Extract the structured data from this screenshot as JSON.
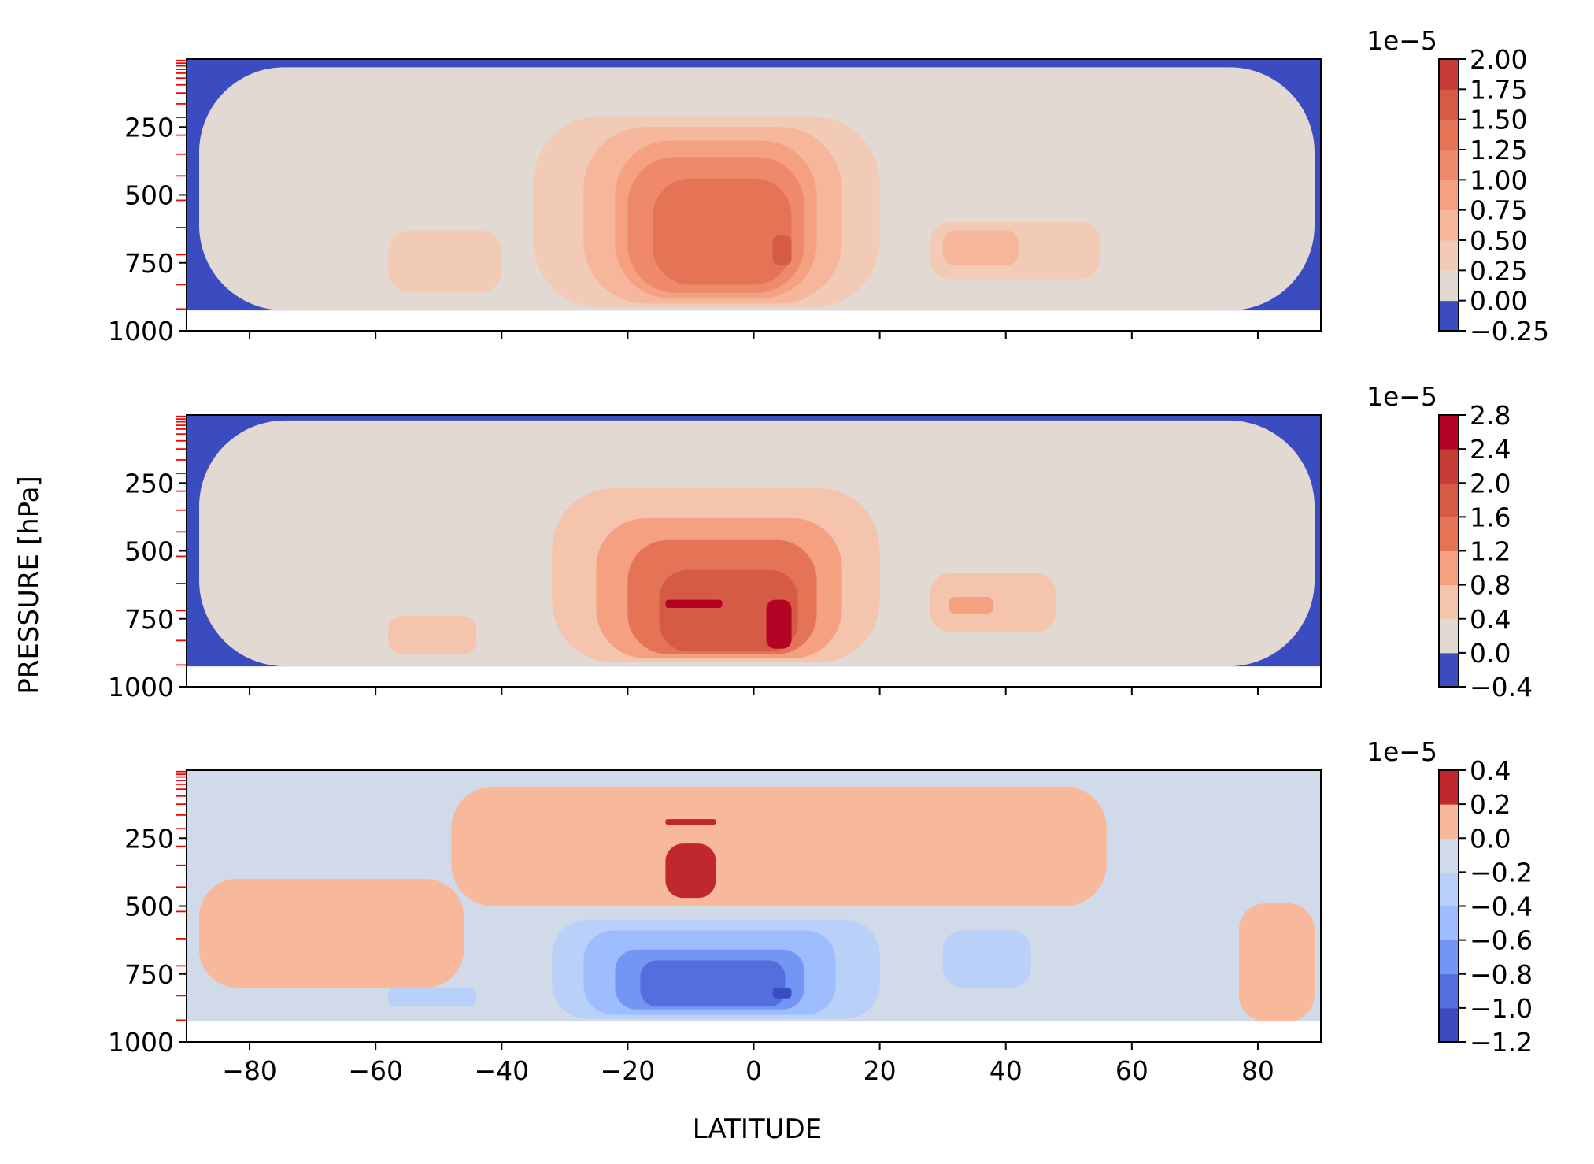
{
  "figure": {
    "ylabel": "PRESSURE [hPa]",
    "xlabel": "LATITUDE",
    "colorbar_exponent": "1e−5"
  },
  "chart_data": [
    {
      "type": "heatmap",
      "subtype": "filled-contour",
      "xlim": [
        -90,
        90
      ],
      "ylim": [
        1000,
        0
      ],
      "xticks": [
        -80,
        -60,
        -40,
        -20,
        0,
        20,
        40,
        60,
        80
      ],
      "xtick_labels": [
        "",
        "",
        "",
        "",
        "",
        "",
        "",
        "",
        ""
      ],
      "yticks": [
        250,
        500,
        750,
        1000
      ],
      "ytick_labels": [
        "250",
        "500",
        "750",
        "1000"
      ],
      "colorbar": {
        "scale": "1e−5",
        "levels": [
          -0.25,
          0.0,
          0.25,
          0.5,
          0.75,
          1.0,
          1.25,
          1.5,
          1.75,
          2.0
        ],
        "tick_labels": [
          "−0.25",
          "0.00",
          "0.25",
          "0.50",
          "0.75",
          "1.00",
          "1.25",
          "1.50",
          "1.75",
          "2.00"
        ],
        "colors": [
          "#3b4cc0",
          "#e3d9d3",
          "#f2cbb7",
          "#f6b69b",
          "#f4a081",
          "#ee8a6a",
          "#e57356",
          "#d65b44",
          "#c43c35"
        ]
      },
      "regions": [
        {
          "level": 1,
          "lon": [
            -88,
            89
          ],
          "p": [
            30,
            925
          ]
        },
        {
          "level": 2,
          "lon": [
            -35,
            20
          ],
          "p": [
            210,
            915
          ]
        },
        {
          "level": 2,
          "lon": [
            -58,
            -40
          ],
          "p": [
            630,
            860
          ]
        },
        {
          "level": 2,
          "lon": [
            28,
            55
          ],
          "p": [
            600,
            810
          ]
        },
        {
          "level": 3,
          "lon": [
            -27,
            14
          ],
          "p": [
            250,
            900
          ]
        },
        {
          "level": 3,
          "lon": [
            30,
            42
          ],
          "p": [
            630,
            760
          ]
        },
        {
          "level": 4,
          "lon": [
            -22,
            10
          ],
          "p": [
            300,
            880
          ]
        },
        {
          "level": 5,
          "lon": [
            -20,
            8
          ],
          "p": [
            360,
            860
          ]
        },
        {
          "level": 6,
          "lon": [
            -16,
            6
          ],
          "p": [
            440,
            830
          ]
        },
        {
          "level": 7,
          "lon": [
            3,
            6
          ],
          "p": [
            650,
            760
          ]
        }
      ]
    },
    {
      "type": "heatmap",
      "subtype": "filled-contour",
      "xlim": [
        -90,
        90
      ],
      "ylim": [
        1000,
        0
      ],
      "xticks": [
        -80,
        -60,
        -40,
        -20,
        0,
        20,
        40,
        60,
        80
      ],
      "xtick_labels": [
        "",
        "",
        "",
        "",
        "",
        "",
        "",
        "",
        ""
      ],
      "yticks": [
        250,
        500,
        750,
        1000
      ],
      "ytick_labels": [
        "250",
        "500",
        "750",
        "1000"
      ],
      "colorbar": {
        "scale": "1e−5",
        "levels": [
          -0.4,
          0.0,
          0.4,
          0.8,
          1.2,
          1.6,
          2.0,
          2.4,
          2.8
        ],
        "tick_labels": [
          "−0.4",
          "0.0",
          "0.4",
          "0.8",
          "1.2",
          "1.6",
          "2.0",
          "2.4",
          "2.8"
        ],
        "colors": [
          "#3b4cc0",
          "#e3d9d3",
          "#f5c4ac",
          "#f4a081",
          "#e57356",
          "#d65b44",
          "#c43c35",
          "#b40426"
        ]
      },
      "regions": [
        {
          "level": 1,
          "lon": [
            -88,
            89
          ],
          "p": [
            20,
            925
          ]
        },
        {
          "level": 2,
          "lon": [
            -32,
            20
          ],
          "p": [
            270,
            910
          ]
        },
        {
          "level": 2,
          "lon": [
            -58,
            -44
          ],
          "p": [
            740,
            880
          ]
        },
        {
          "level": 2,
          "lon": [
            28,
            48
          ],
          "p": [
            580,
            800
          ]
        },
        {
          "level": 3,
          "lon": [
            -25,
            14
          ],
          "p": [
            380,
            895
          ]
        },
        {
          "level": 3,
          "lon": [
            31,
            38
          ],
          "p": [
            670,
            730
          ]
        },
        {
          "level": 4,
          "lon": [
            -20,
            10
          ],
          "p": [
            460,
            880
          ]
        },
        {
          "level": 5,
          "lon": [
            -15,
            7
          ],
          "p": [
            570,
            870
          ]
        },
        {
          "level": 7,
          "lon": [
            -14,
            -5
          ],
          "p": [
            680,
            710
          ]
        },
        {
          "level": 7,
          "lon": [
            2,
            6
          ],
          "p": [
            680,
            860
          ]
        }
      ]
    },
    {
      "type": "heatmap",
      "subtype": "filled-contour",
      "xlim": [
        -90,
        90
      ],
      "ylim": [
        1000,
        0
      ],
      "xticks": [
        -80,
        -60,
        -40,
        -20,
        0,
        20,
        40,
        60,
        80
      ],
      "xtick_labels": [
        "−80",
        "−60",
        "−40",
        "−20",
        "0",
        "20",
        "40",
        "60",
        "80"
      ],
      "yticks": [
        250,
        500,
        750,
        1000
      ],
      "ytick_labels": [
        "250",
        "500",
        "750",
        "1000"
      ],
      "colorbar": {
        "scale": "1e−5",
        "levels": [
          -1.2,
          -1.0,
          -0.8,
          -0.6,
          -0.4,
          -0.2,
          0.0,
          0.2,
          0.4
        ],
        "tick_labels": [
          "−1.2",
          "−1.0",
          "−0.8",
          "−0.6",
          "−0.4",
          "−0.2",
          "0.0",
          "0.2",
          "0.4"
        ],
        "colors": [
          "#3b4cc0",
          "#536edd",
          "#7396f5",
          "#9dbdff",
          "#b9d0f9",
          "#d1dae9",
          "#f7b89c",
          "#c0282f"
        ]
      },
      "regions": [
        {
          "level": 6,
          "lon": [
            -48,
            56
          ],
          "p": [
            60,
            500
          ]
        },
        {
          "level": 6,
          "lon": [
            -88,
            -46
          ],
          "p": [
            400,
            800
          ]
        },
        {
          "level": 6,
          "lon": [
            77,
            89
          ],
          "p": [
            490,
            925
          ]
        },
        {
          "level": 7,
          "lon": [
            -14,
            -6
          ],
          "p": [
            180,
            200
          ]
        },
        {
          "level": 7,
          "lon": [
            -14,
            -6
          ],
          "p": [
            270,
            470
          ]
        },
        {
          "level": 4,
          "lon": [
            -32,
            20
          ],
          "p": [
            550,
            915
          ]
        },
        {
          "level": 4,
          "lon": [
            -58,
            -44
          ],
          "p": [
            800,
            870
          ]
        },
        {
          "level": 4,
          "lon": [
            30,
            44
          ],
          "p": [
            590,
            800
          ]
        },
        {
          "level": 3,
          "lon": [
            -27,
            13
          ],
          "p": [
            590,
            900
          ]
        },
        {
          "level": 2,
          "lon": [
            -22,
            8
          ],
          "p": [
            660,
            880
          ]
        },
        {
          "level": 1,
          "lon": [
            -18,
            5
          ],
          "p": [
            700,
            870
          ]
        },
        {
          "level": 0,
          "lon": [
            3,
            6
          ],
          "p": [
            800,
            840
          ]
        }
      ]
    }
  ]
}
